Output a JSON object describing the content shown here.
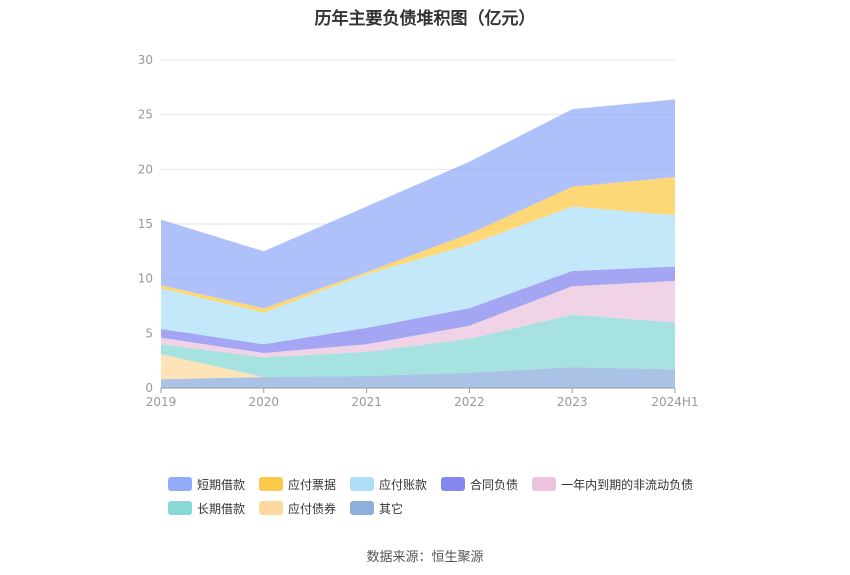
{
  "chart_data": {
    "type": "area",
    "stacked": true,
    "title": "历年主要负债堆积图（亿元）",
    "categories": [
      "2019",
      "2020",
      "2021",
      "2022",
      "2023",
      "2024H1"
    ],
    "ylim": [
      0,
      30
    ],
    "yticks": [
      "0",
      "5",
      "10",
      "15",
      "20",
      "25",
      "30"
    ],
    "grid": true,
    "legend_position": "bottom",
    "series": [
      {
        "name": "其它",
        "color": "#8eaedc",
        "values": [
          0.8,
          1.0,
          1.1,
          1.4,
          1.9,
          1.7
        ]
      },
      {
        "name": "应付债券",
        "color": "#fdd9a0",
        "values": [
          2.3,
          0.0,
          0.0,
          0.0,
          0.0,
          0.0
        ]
      },
      {
        "name": "长期借款",
        "color": "#88d8d4",
        "values": [
          0.9,
          1.8,
          2.2,
          3.1,
          4.8,
          4.3
        ]
      },
      {
        "name": "一年内到期的非流动负债",
        "color": "#ecc4e0",
        "values": [
          0.6,
          0.4,
          0.7,
          1.2,
          2.6,
          3.8
        ]
      },
      {
        "name": "合同负债",
        "color": "#8688f0",
        "values": [
          0.8,
          0.8,
          1.5,
          1.6,
          1.4,
          1.3
        ]
      },
      {
        "name": "应付账款",
        "color": "#ade0f8",
        "values": [
          3.7,
          2.9,
          4.9,
          5.8,
          5.9,
          4.7
        ]
      },
      {
        "name": "应付票据",
        "color": "#fdc94a",
        "values": [
          0.3,
          0.4,
          0.2,
          1.0,
          1.8,
          3.5
        ]
      },
      {
        "name": "短期借款",
        "color": "#93acf8",
        "values": [
          6.0,
          5.2,
          6.0,
          6.6,
          7.1,
          7.1
        ]
      }
    ]
  },
  "legend": {
    "row1": [
      {
        "name": "短期借款",
        "color": "#93acf8"
      },
      {
        "name": "应付票据",
        "color": "#fdc94a"
      },
      {
        "name": "应付账款",
        "color": "#ade0f8"
      },
      {
        "name": "合同负债",
        "color": "#8688f0"
      },
      {
        "name": "一年内到期的非流动负债",
        "color": "#ecc4e0"
      }
    ],
    "row2": [
      {
        "name": "长期借款",
        "color": "#88d8d4"
      },
      {
        "name": "应付债券",
        "color": "#fdd9a0"
      },
      {
        "name": "其它",
        "color": "#8eaedc"
      }
    ]
  },
  "source": "数据来源：恒生聚源"
}
